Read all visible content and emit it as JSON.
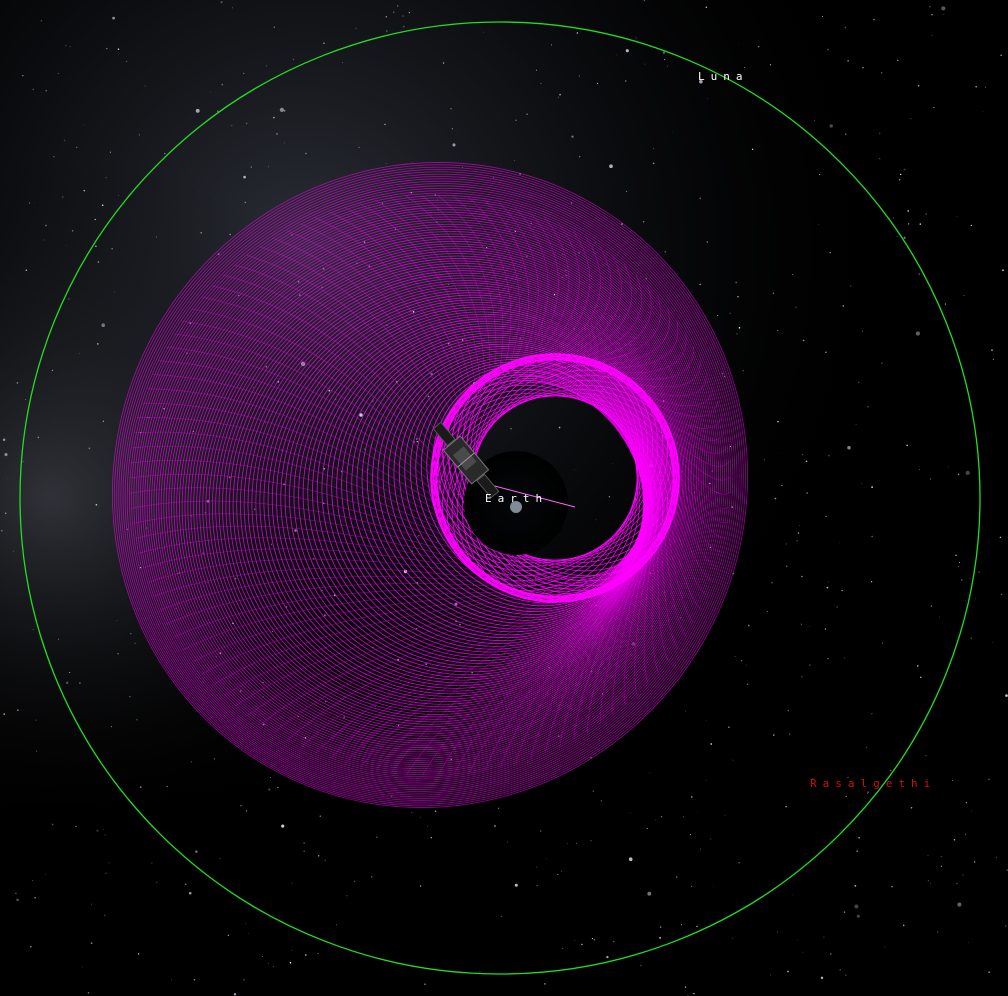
{
  "scene": {
    "type": "orbit-visualization",
    "background_color": "#000000",
    "bodies": {
      "central": {
        "label": "Earth",
        "label_color": "#ffffff"
      },
      "moon": {
        "label": "Luna",
        "label_color": "#ffffff",
        "orbit_color": "#22dd22"
      }
    },
    "star_label": {
      "label": "Rasalgethi",
      "color": "#cc1111"
    },
    "trajectory": {
      "color": "#ff00ff",
      "style": "wireframe-spiral"
    },
    "spacecraft": {
      "icon": "spacecraft-icon"
    }
  }
}
